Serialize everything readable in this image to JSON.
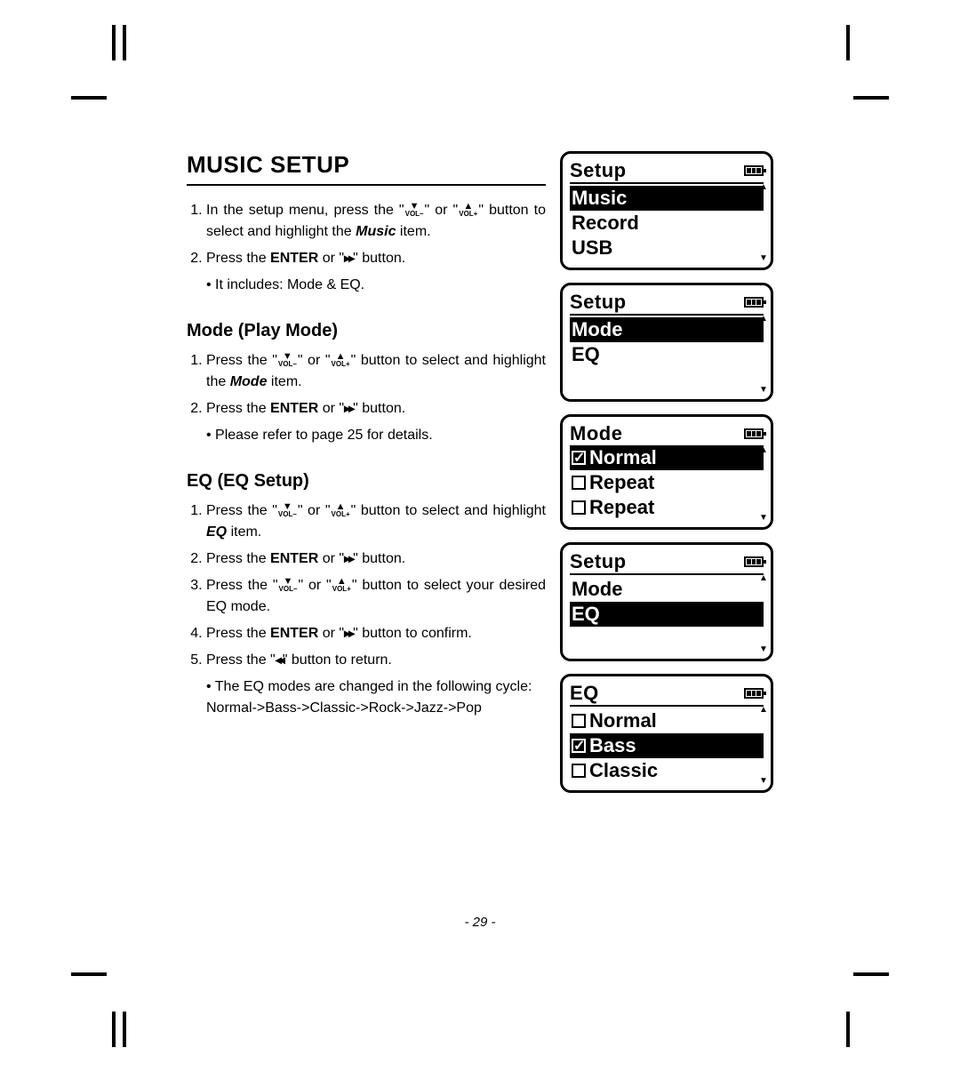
{
  "title": "MUSIC SETUP",
  "page_number": "- 29 -",
  "colors": {
    "fg": "#000000",
    "bg": "#ffffff"
  },
  "icons": {
    "vol_down": "VOL –",
    "vol_up": "VOL +",
    "ff": "▸▸",
    "rw": "◂◂"
  },
  "sections": {
    "intro": {
      "steps": [
        {
          "pre": "In the setup menu, press the \"",
          "mid1": "\" or \"",
          "mid2": "\" button to select and highlight the ",
          "item": "Music",
          "post": " item."
        },
        {
          "pre": "Press the ",
          "enter": "ENTER",
          "mid": " or \"",
          "post": "\" button."
        }
      ],
      "notes": [
        "It includes: Mode & EQ."
      ]
    },
    "mode": {
      "heading": "Mode (Play Mode)",
      "steps": [
        {
          "pre": "Press the \"",
          "mid1": "\" or \"",
          "mid2": "\" button to select and highlight the ",
          "item": "Mode",
          "post": " item."
        },
        {
          "pre": "Press the ",
          "enter": "ENTER",
          "mid": " or \"",
          "post": "\" button."
        }
      ],
      "notes": [
        "Please refer to page 25 for details."
      ]
    },
    "eq": {
      "heading": "EQ (EQ Setup)",
      "steps": [
        {
          "pre": "Press the \"",
          "mid1": "\" or \"",
          "mid2": "\" button to select and highlight ",
          "item": "EQ",
          "post": " item."
        },
        {
          "pre": "Press the ",
          "enter": "ENTER",
          "mid": " or \"",
          "post": "\" button."
        },
        {
          "pre": "Press the \"",
          "mid1": "\" or \"",
          "mid2": "\" button to select your desired EQ mode."
        },
        {
          "pre": "Press the ",
          "enter": "ENTER",
          "mid": " or \"",
          "post": "\" button to confirm."
        },
        {
          "pre": "Press the \"",
          "post": "\" button to return."
        }
      ],
      "notes": [
        "The EQ modes are changed in the following cycle: Normal->Bass->Classic->Rock->Jazz->Pop"
      ]
    }
  },
  "screens": [
    {
      "title": "Setup",
      "underline": true,
      "rows": [
        {
          "label": "Music",
          "selected": true
        },
        {
          "label": "Record",
          "selected": false
        },
        {
          "label": "USB",
          "selected": false
        }
      ]
    },
    {
      "title": "Setup",
      "underline": true,
      "rows": [
        {
          "label": "Mode",
          "selected": true
        },
        {
          "label": "EQ",
          "selected": false
        }
      ],
      "blank_rows": 1
    },
    {
      "title": "Mode",
      "underline": false,
      "rows": [
        {
          "label": "Normal",
          "selected": true,
          "checkbox": true,
          "checked": true
        },
        {
          "label": "Repeat",
          "selected": false,
          "checkbox": true,
          "checked": false
        },
        {
          "label": "Repeat",
          "selected": false,
          "checkbox": true,
          "checked": false
        }
      ]
    },
    {
      "title": "Setup",
      "underline": true,
      "rows": [
        {
          "label": "Mode",
          "selected": false
        },
        {
          "label": "EQ",
          "selected": true
        }
      ],
      "blank_rows": 1
    },
    {
      "title": "EQ",
      "underline": true,
      "rows": [
        {
          "label": "Normal",
          "selected": false,
          "checkbox": true,
          "checked": false
        },
        {
          "label": "Bass",
          "selected": true,
          "checkbox": true,
          "checked": true
        },
        {
          "label": "Classic",
          "selected": false,
          "checkbox": true,
          "checked": false
        }
      ]
    }
  ]
}
